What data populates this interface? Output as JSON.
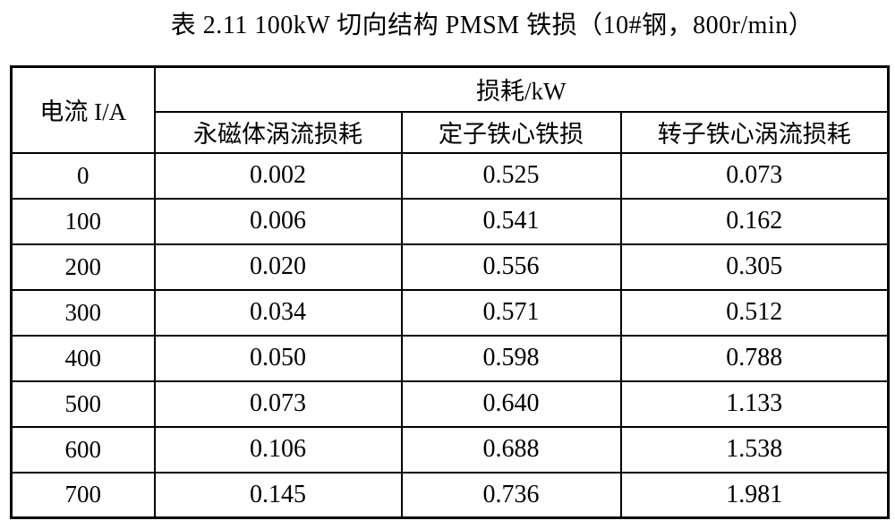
{
  "page": {
    "background": "#ffffff",
    "text_color": "#000000",
    "border_color": "#000000"
  },
  "title": "表 2.11 100kW 切向结构 PMSM 铁损（10#钢，800r/min）",
  "table": {
    "corner_header": "电流 I/A",
    "group_header": "损耗/kW",
    "sub_headers": [
      "永磁体涡流损耗",
      "定子铁心铁损",
      "转子铁心涡流损耗"
    ],
    "rows": [
      {
        "current": "0",
        "values": [
          "0.002",
          "0.525",
          "0.073"
        ]
      },
      {
        "current": "100",
        "values": [
          "0.006",
          "0.541",
          "0.162"
        ]
      },
      {
        "current": "200",
        "values": [
          "0.020",
          "0.556",
          "0.305"
        ]
      },
      {
        "current": "300",
        "values": [
          "0.034",
          "0.571",
          "0.512"
        ]
      },
      {
        "current": "400",
        "values": [
          "0.050",
          "0.598",
          "0.788"
        ]
      },
      {
        "current": "500",
        "values": [
          "0.073",
          "0.640",
          "1.133"
        ]
      },
      {
        "current": "600",
        "values": [
          "0.106",
          "0.688",
          "1.538"
        ]
      },
      {
        "current": "700",
        "values": [
          "0.145",
          "0.736",
          "1.981"
        ]
      }
    ]
  }
}
